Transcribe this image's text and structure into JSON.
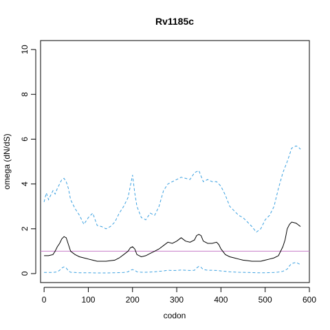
{
  "chart_data": {
    "type": "line",
    "title": "Rv1185c",
    "xlabel": "codon",
    "ylabel": "omega (dN/dS)",
    "xlim": [
      -8,
      600
    ],
    "ylim": [
      -0.4,
      10.4
    ],
    "xticks": [
      0,
      100,
      200,
      300,
      400,
      500,
      600
    ],
    "yticks": [
      0,
      2,
      4,
      6,
      8,
      10
    ],
    "reference_line": {
      "y": 1,
      "color": "#c77cc9"
    },
    "series": [
      {
        "style": "solid",
        "color": "#000000",
        "x": [
          0,
          10,
          20,
          25,
          30,
          35,
          40,
          45,
          50,
          55,
          60,
          70,
          80,
          90,
          100,
          110,
          120,
          140,
          160,
          170,
          180,
          190,
          195,
          200,
          205,
          210,
          220,
          230,
          240,
          250,
          260,
          270,
          280,
          290,
          300,
          310,
          320,
          330,
          340,
          345,
          350,
          355,
          360,
          370,
          380,
          390,
          395,
          400,
          410,
          420,
          430,
          440,
          450,
          460,
          470,
          480,
          490,
          500,
          510,
          520,
          530,
          540,
          545,
          550,
          555,
          560,
          570,
          580
        ],
        "values": [
          0.8,
          0.8,
          0.85,
          1.0,
          1.2,
          1.35,
          1.55,
          1.65,
          1.6,
          1.3,
          1.0,
          0.85,
          0.75,
          0.7,
          0.65,
          0.6,
          0.55,
          0.55,
          0.6,
          0.7,
          0.85,
          1.0,
          1.15,
          1.2,
          1.1,
          0.85,
          0.75,
          0.8,
          0.9,
          1.0,
          1.1,
          1.25,
          1.4,
          1.35,
          1.45,
          1.6,
          1.45,
          1.4,
          1.5,
          1.7,
          1.75,
          1.7,
          1.45,
          1.35,
          1.35,
          1.4,
          1.3,
          1.1,
          0.85,
          0.75,
          0.7,
          0.65,
          0.6,
          0.58,
          0.55,
          0.55,
          0.55,
          0.6,
          0.65,
          0.7,
          0.8,
          1.2,
          1.5,
          2.0,
          2.2,
          2.3,
          2.25,
          2.1
        ]
      },
      {
        "style": "dashed",
        "color": "#3aa0e0",
        "x": [
          0,
          5,
          10,
          15,
          20,
          25,
          30,
          35,
          40,
          45,
          50,
          55,
          60,
          70,
          80,
          90,
          100,
          110,
          120,
          130,
          140,
          150,
          160,
          170,
          180,
          190,
          195,
          200,
          205,
          210,
          220,
          230,
          240,
          250,
          260,
          270,
          280,
          290,
          300,
          310,
          320,
          330,
          340,
          350,
          360,
          370,
          380,
          390,
          400,
          410,
          420,
          430,
          440,
          450,
          460,
          470,
          480,
          490,
          500,
          510,
          520,
          530,
          540,
          550,
          555,
          560,
          570,
          575,
          580
        ],
        "values": [
          3.2,
          3.6,
          3.3,
          3.5,
          3.7,
          3.55,
          3.8,
          4.0,
          4.2,
          4.25,
          4.1,
          3.8,
          3.3,
          2.9,
          2.6,
          2.2,
          2.5,
          2.7,
          2.15,
          2.1,
          2.0,
          2.1,
          2.3,
          2.7,
          3.0,
          3.4,
          3.9,
          4.4,
          3.6,
          3.0,
          2.5,
          2.4,
          2.7,
          2.6,
          3.0,
          3.7,
          4.0,
          4.1,
          4.2,
          4.3,
          4.25,
          4.2,
          4.5,
          4.6,
          4.1,
          4.2,
          4.1,
          4.1,
          3.9,
          3.5,
          3.0,
          2.8,
          2.6,
          2.5,
          2.3,
          2.1,
          1.85,
          2.0,
          2.4,
          2.6,
          3.0,
          3.8,
          4.5,
          5.0,
          5.3,
          5.6,
          5.7,
          5.65,
          5.55
        ]
      },
      {
        "style": "dashed",
        "color": "#3aa0e0",
        "x": [
          0,
          10,
          20,
          30,
          35,
          40,
          45,
          50,
          55,
          60,
          70,
          80,
          90,
          100,
          120,
          140,
          160,
          180,
          190,
          195,
          200,
          205,
          210,
          220,
          230,
          240,
          250,
          260,
          270,
          280,
          290,
          300,
          310,
          320,
          330,
          340,
          345,
          350,
          355,
          360,
          370,
          380,
          390,
          400,
          420,
          440,
          460,
          480,
          500,
          520,
          530,
          540,
          550,
          555,
          560,
          570,
          580
        ],
        "values": [
          0.05,
          0.05,
          0.05,
          0.08,
          0.15,
          0.25,
          0.3,
          0.25,
          0.12,
          0.06,
          0.05,
          0.04,
          0.04,
          0.04,
          0.03,
          0.03,
          0.04,
          0.05,
          0.08,
          0.15,
          0.18,
          0.15,
          0.08,
          0.06,
          0.06,
          0.07,
          0.08,
          0.1,
          0.12,
          0.15,
          0.14,
          0.14,
          0.16,
          0.15,
          0.14,
          0.15,
          0.25,
          0.32,
          0.28,
          0.18,
          0.15,
          0.15,
          0.14,
          0.12,
          0.08,
          0.06,
          0.05,
          0.04,
          0.04,
          0.05,
          0.07,
          0.1,
          0.2,
          0.35,
          0.45,
          0.5,
          0.4
        ]
      }
    ]
  }
}
